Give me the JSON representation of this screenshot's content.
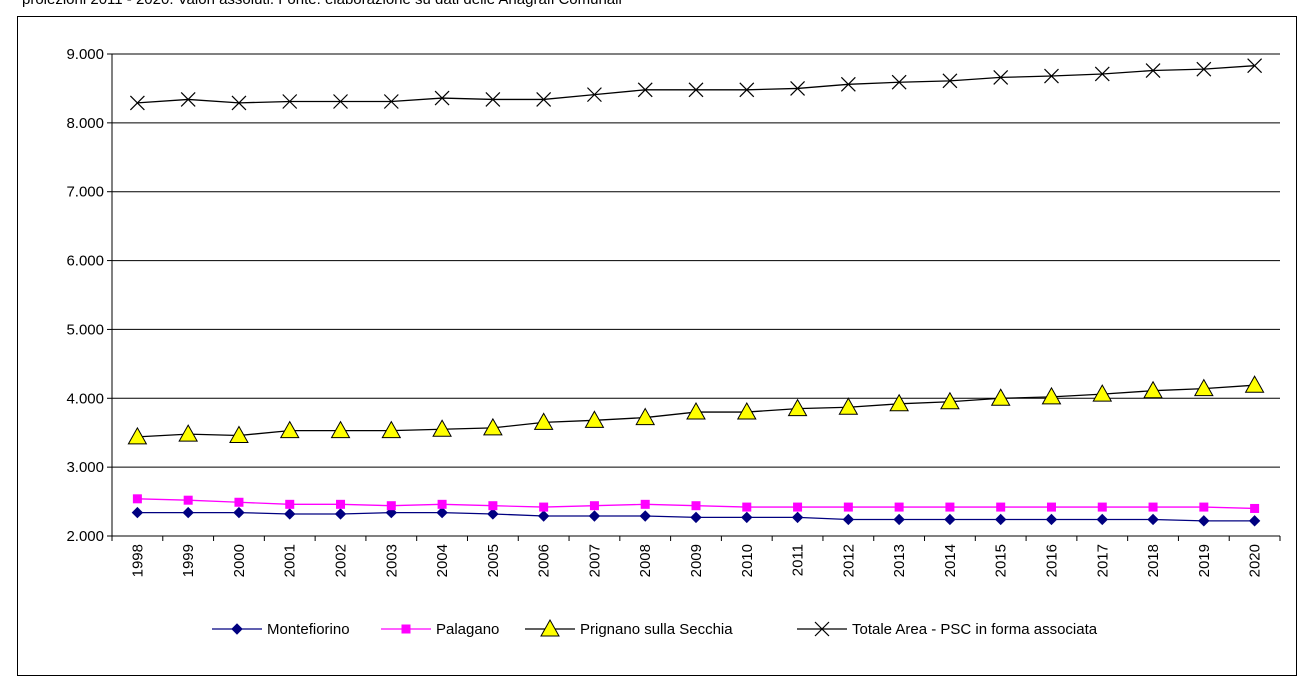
{
  "caption": "proiezioni 2011 - 2020. Valori assoluti. Fonte: elaborazione su dati delle Anagrafi Comunali",
  "chart_data": {
    "type": "line",
    "title": "",
    "xlabel": "",
    "ylabel": "",
    "ylim": [
      2000,
      9000
    ],
    "yticks": [
      2000,
      3000,
      4000,
      5000,
      6000,
      7000,
      8000,
      9000
    ],
    "ytick_labels": [
      "2.000",
      "3.000",
      "4.000",
      "5.000",
      "6.000",
      "7.000",
      "8.000",
      "9.000"
    ],
    "grid": "horizontal",
    "legend_position": "bottom",
    "x": [
      "1998",
      "1999",
      "2000",
      "2001",
      "2002",
      "2003",
      "2004",
      "2005",
      "2006",
      "2007",
      "2008",
      "2009",
      "2010",
      "2011",
      "2012",
      "2013",
      "2014",
      "2015",
      "2016",
      "2017",
      "2018",
      "2019",
      "2020"
    ],
    "series": [
      {
        "name": "Montefiorino",
        "color": "#000080",
        "marker": "diamond",
        "values": [
          2340,
          2340,
          2340,
          2320,
          2320,
          2340,
          2340,
          2320,
          2290,
          2290,
          2290,
          2270,
          2270,
          2270,
          2240,
          2240,
          2240,
          2240,
          2240,
          2240,
          2240,
          2220,
          2220
        ]
      },
      {
        "name": "Palagano",
        "color": "#ff00ff",
        "marker": "square",
        "values": [
          2540,
          2520,
          2490,
          2460,
          2460,
          2440,
          2460,
          2440,
          2420,
          2440,
          2460,
          2440,
          2420,
          2420,
          2420,
          2420,
          2420,
          2420,
          2420,
          2420,
          2420,
          2420,
          2400
        ]
      },
      {
        "name": "Prignano sulla Secchia",
        "color": "#ffff00",
        "marker": "triangle",
        "values": [
          3440,
          3480,
          3460,
          3530,
          3530,
          3530,
          3550,
          3570,
          3650,
          3680,
          3720,
          3800,
          3800,
          3850,
          3870,
          3920,
          3950,
          4000,
          4020,
          4060,
          4110,
          4140,
          4190
        ]
      },
      {
        "name": "Totale Area - PSC in forma associata",
        "color": "#000000",
        "marker": "x",
        "values": [
          8290,
          8340,
          8290,
          8310,
          8310,
          8310,
          8360,
          8340,
          8340,
          8410,
          8480,
          8480,
          8480,
          8500,
          8560,
          8590,
          8610,
          8660,
          8680,
          8710,
          8760,
          8780,
          8830
        ]
      }
    ]
  }
}
